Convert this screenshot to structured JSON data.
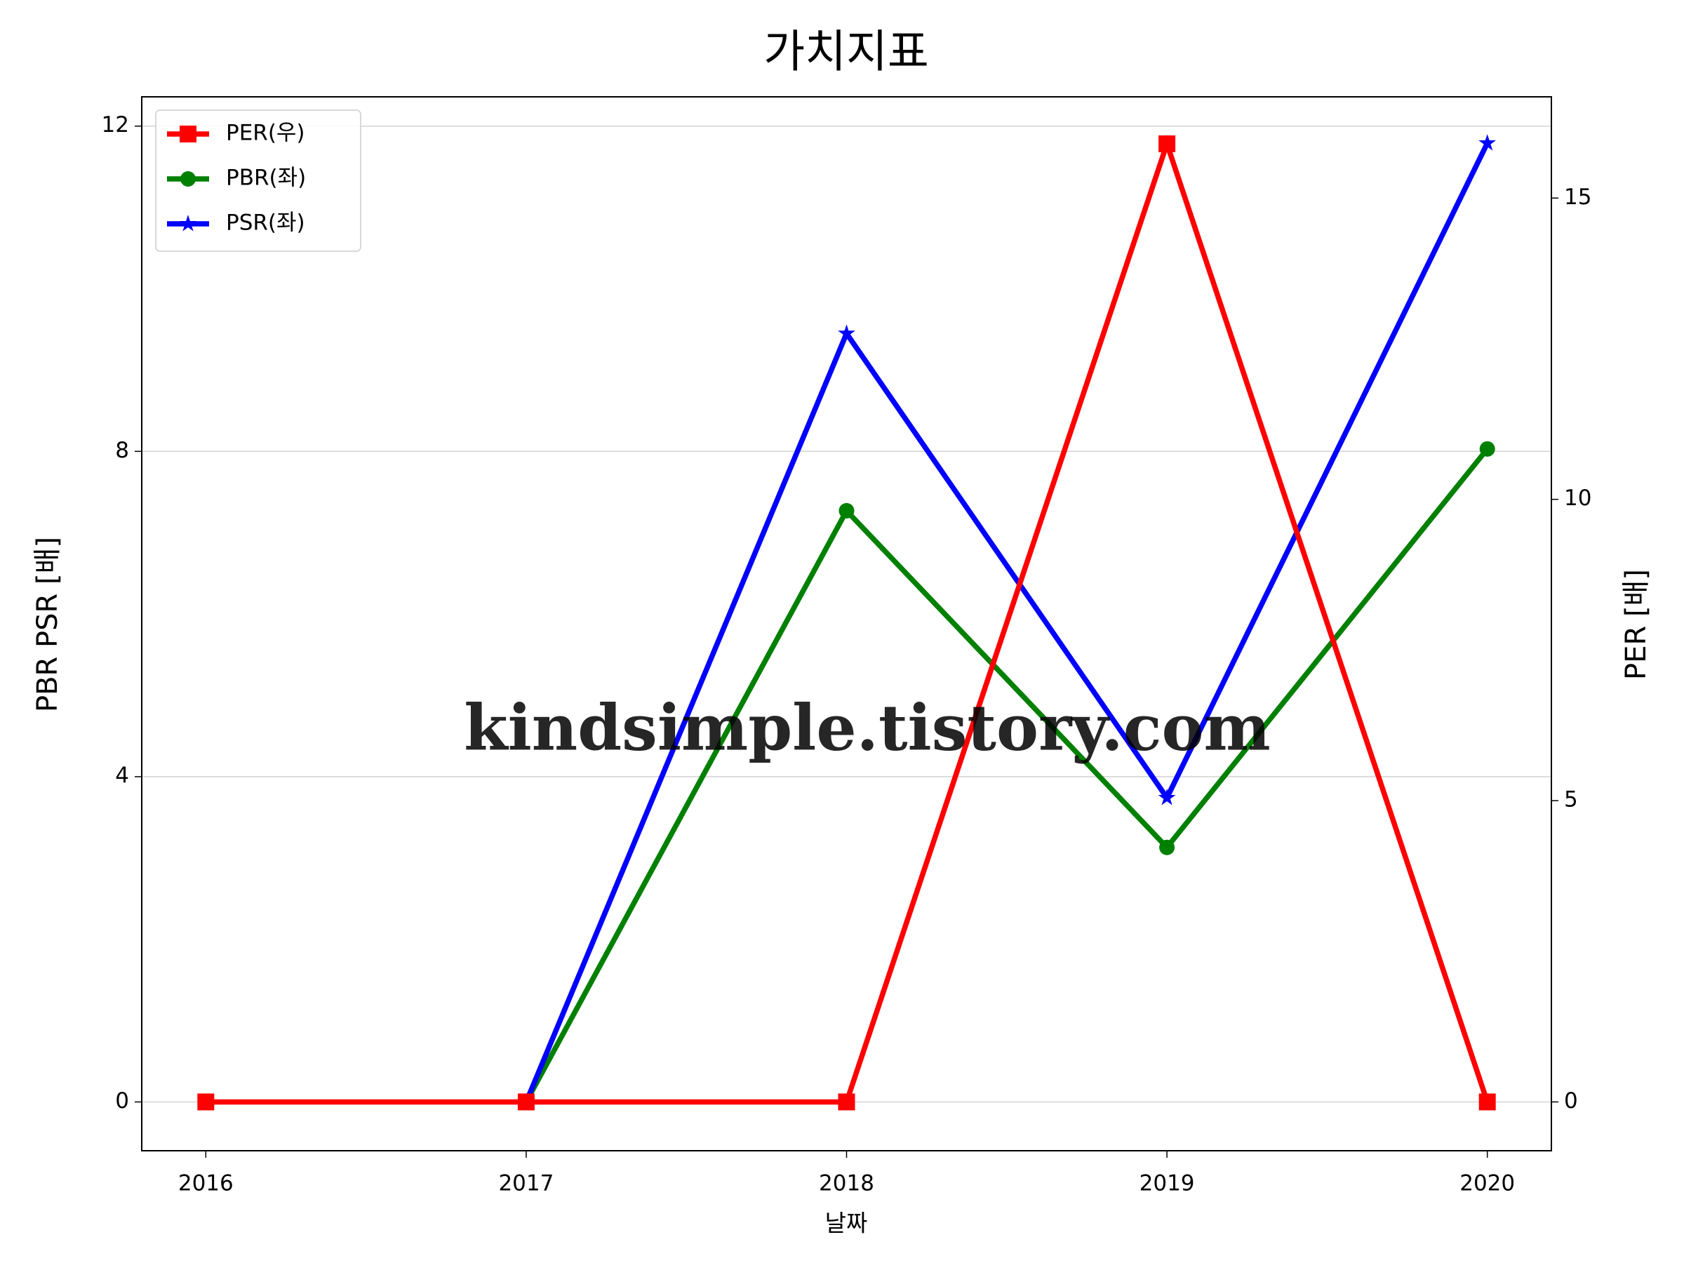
{
  "chart_data": {
    "type": "line",
    "title": "가치지표",
    "xlabel": "날짜",
    "ylabel": "PBR PSR [배]",
    "y2label": "PER [배]",
    "x": [
      2016,
      2017,
      2018,
      2019,
      2020
    ],
    "xlim": [
      2015.8,
      2020.2
    ],
    "xticks": [
      2016,
      2017,
      2018,
      2019,
      2020
    ],
    "ylim": [
      -0.6,
      12.36
    ],
    "yticks": [
      0,
      4,
      8,
      12
    ],
    "y2lim": [
      -0.81,
      16.68
    ],
    "y2ticks": [
      0,
      5,
      10,
      15
    ],
    "grid": true,
    "legend": "upper left",
    "ylabel_color": "#008000",
    "y2label_color": "#ff0000",
    "watermark": "kindsimple.tistory.com",
    "series": [
      {
        "name": "PER(우)",
        "color": "#ff0000",
        "marker": "square",
        "axis": "y2",
        "values": [
          0,
          0,
          0,
          15.9,
          0
        ]
      },
      {
        "name": "PBR(좌)",
        "color": "#008000",
        "marker": "circle",
        "values": [
          null,
          0,
          7.27,
          3.13,
          8.03
        ]
      },
      {
        "name": "PSR(좌)",
        "color": "#0000ff",
        "marker": "star",
        "values": [
          null,
          0,
          9.45,
          3.74,
          11.79
        ]
      }
    ]
  }
}
